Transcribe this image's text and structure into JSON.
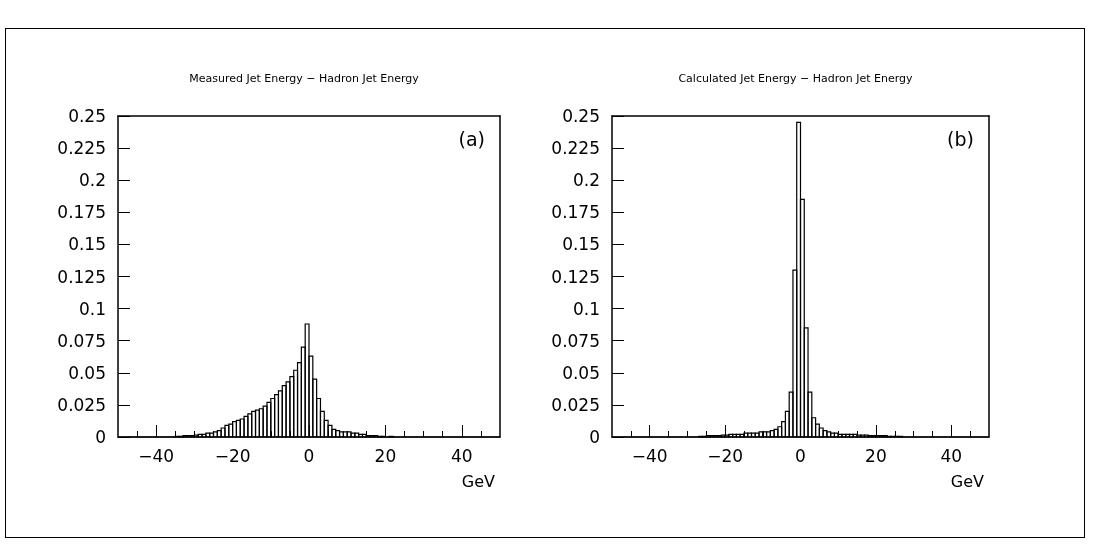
{
  "chart_data": [
    {
      "type": "histogram",
      "title": "Measured Jet Energy − Hadron Jet Energy",
      "xlabel": "GeV",
      "annotations": [
        "(a)"
      ],
      "color": "#000000",
      "bins": [
        -50,
        -49,
        -48,
        -47,
        -46,
        -45,
        -44,
        -43,
        -42,
        -41,
        -40,
        -39,
        -38,
        -37,
        -36,
        -35,
        -34,
        -33,
        -32,
        -31,
        -30,
        -29,
        -28,
        -27,
        -26,
        -25,
        -24,
        -23,
        -22,
        -21,
        -20,
        -19,
        -18,
        -17,
        -16,
        -15,
        -14,
        -13,
        -12,
        -11,
        -10,
        -9,
        -8,
        -7,
        -6,
        -5,
        -4,
        -3,
        -2,
        -1,
        0,
        1,
        2,
        3,
        4,
        5,
        6,
        7,
        8,
        9,
        10,
        11,
        12,
        13,
        14,
        15,
        16,
        17,
        18,
        19,
        20,
        21,
        22,
        23,
        24,
        25,
        26,
        27,
        28,
        29,
        30,
        31,
        32,
        33,
        34,
        35,
        36,
        37,
        38,
        39,
        40,
        41,
        42,
        43,
        44,
        45,
        46,
        47,
        48,
        49,
        50
      ],
      "values": [
        0,
        0,
        0,
        0,
        0,
        0,
        0,
        0,
        0,
        0,
        0,
        0,
        0,
        0,
        0,
        0.0005,
        0.0005,
        0.001,
        0.001,
        0.001,
        0.0015,
        0.002,
        0.002,
        0.003,
        0.003,
        0.004,
        0.005,
        0.007,
        0.009,
        0.01,
        0.012,
        0.013,
        0.014,
        0.016,
        0.018,
        0.02,
        0.021,
        0.022,
        0.024,
        0.027,
        0.03,
        0.033,
        0.036,
        0.04,
        0.043,
        0.047,
        0.052,
        0.058,
        0.07,
        0.088,
        0.063,
        0.045,
        0.03,
        0.02,
        0.013,
        0.009,
        0.006,
        0.005,
        0.004,
        0.004,
        0.004,
        0.003,
        0.003,
        0.002,
        0.002,
        0.001,
        0.001,
        0.001,
        0.0005,
        0.0005,
        0,
        0.0005,
        0,
        0,
        0,
        0,
        0,
        0,
        0,
        0,
        0,
        0,
        0,
        0,
        0,
        0,
        0,
        0,
        0,
        0,
        0,
        0,
        0,
        0,
        0,
        0,
        0,
        0,
        0,
        0
      ],
      "xlim": [
        -50,
        50
      ],
      "xticks": [
        -40,
        -20,
        0,
        20,
        40
      ],
      "ylim": [
        0,
        0.25
      ],
      "yticks": [
        0,
        0.025,
        0.05,
        0.075,
        0.1,
        0.125,
        0.15,
        0.175,
        0.2,
        0.225,
        0.25
      ],
      "grid": false
    },
    {
      "type": "histogram",
      "title": "Calculated Jet Energy − Hadron Jet Energy",
      "xlabel": "GeV",
      "annotations": [
        "(b)"
      ],
      "color": "#000000",
      "bins": [
        -50,
        -49,
        -48,
        -47,
        -46,
        -45,
        -44,
        -43,
        -42,
        -41,
        -40,
        -39,
        -38,
        -37,
        -36,
        -35,
        -34,
        -33,
        -32,
        -31,
        -30,
        -29,
        -28,
        -27,
        -26,
        -25,
        -24,
        -23,
        -22,
        -21,
        -20,
        -19,
        -18,
        -17,
        -16,
        -15,
        -14,
        -13,
        -12,
        -11,
        -10,
        -9,
        -8,
        -7,
        -6,
        -5,
        -4,
        -3,
        -2,
        -1,
        0,
        1,
        2,
        3,
        4,
        5,
        6,
        7,
        8,
        9,
        10,
        11,
        12,
        13,
        14,
        15,
        16,
        17,
        18,
        19,
        20,
        21,
        22,
        23,
        24,
        25,
        26,
        27,
        28,
        29,
        30,
        31,
        32,
        33,
        34,
        35,
        36,
        37,
        38,
        39,
        40,
        41,
        42,
        43,
        44,
        45,
        46,
        47,
        48,
        49,
        50
      ],
      "values": [
        0,
        0,
        0,
        0,
        0,
        0,
        0,
        0,
        0,
        0,
        0,
        0,
        0,
        0,
        0,
        0,
        0,
        0,
        0,
        0,
        0,
        0,
        0,
        0.0005,
        0.0005,
        0.001,
        0.001,
        0.001,
        0.001,
        0.0015,
        0.0015,
        0.002,
        0.002,
        0.002,
        0.002,
        0.003,
        0.003,
        0.003,
        0.003,
        0.004,
        0.004,
        0.004,
        0.005,
        0.006,
        0.008,
        0.012,
        0.02,
        0.035,
        0.13,
        0.245,
        0.185,
        0.085,
        0.035,
        0.015,
        0.01,
        0.007,
        0.005,
        0.004,
        0.003,
        0.003,
        0.002,
        0.002,
        0.002,
        0.002,
        0.002,
        0.0015,
        0.0015,
        0.0015,
        0.001,
        0.001,
        0.001,
        0.001,
        0.001,
        0.0005,
        0.0005,
        0.0005,
        0.0005,
        0,
        0,
        0,
        0,
        0,
        0,
        0,
        0,
        0,
        0,
        0,
        0,
        0,
        0,
        0,
        0,
        0,
        0,
        0,
        0,
        0,
        0,
        0
      ],
      "xlim": [
        -50,
        50
      ],
      "xticks": [
        -40,
        -20,
        0,
        20,
        40
      ],
      "ylim": [
        0,
        0.25
      ],
      "yticks": [
        0,
        0.025,
        0.05,
        0.075,
        0.1,
        0.125,
        0.15,
        0.175,
        0.2,
        0.225,
        0.25
      ],
      "grid": false
    }
  ]
}
